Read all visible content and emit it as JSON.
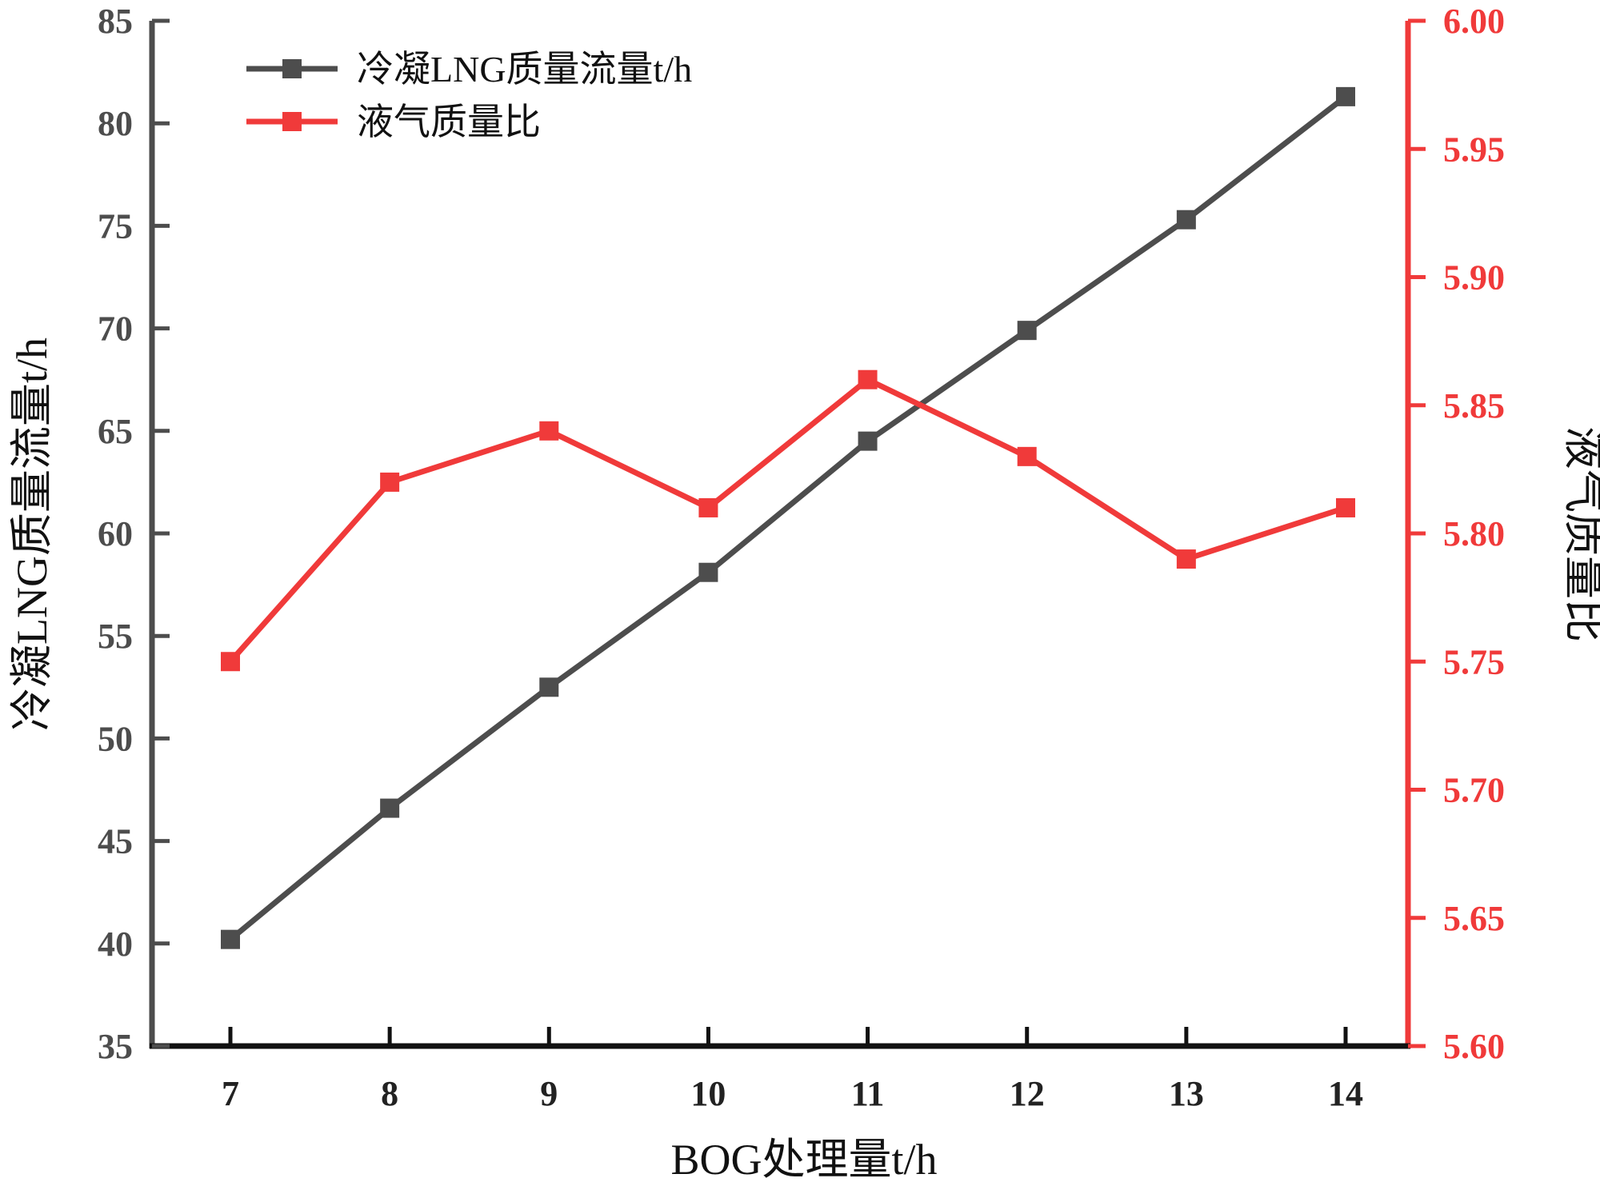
{
  "chart_data": {
    "type": "line",
    "x": [
      7,
      8,
      9,
      10,
      11,
      12,
      13,
      14
    ],
    "xlabel": "BOG处理量t/h",
    "ylabel_left": "冷凝LNG质量流量t/h",
    "ylabel_right": "液气质量比",
    "ylim_left": [
      35,
      85
    ],
    "yticks_left": [
      "35",
      "40",
      "45",
      "50",
      "55",
      "60",
      "65",
      "70",
      "75",
      "80",
      "85"
    ],
    "ylim_right": [
      5.6,
      6.0
    ],
    "yticks_right": [
      "5.60",
      "5.65",
      "5.70",
      "5.75",
      "5.80",
      "5.85",
      "5.90",
      "5.95",
      "6.00"
    ],
    "xticks": [
      "7",
      "8",
      "9",
      "10",
      "11",
      "12",
      "13",
      "14"
    ],
    "series": [
      {
        "name": "冷凝LNG质量流量t/h",
        "axis": "left",
        "color": "#4d4d4d",
        "values": [
          40.2,
          46.6,
          52.5,
          58.1,
          64.5,
          69.9,
          75.3,
          81.3
        ]
      },
      {
        "name": "液气质量比",
        "axis": "right",
        "color": "#f03a3a",
        "values": [
          5.75,
          5.82,
          5.84,
          5.81,
          5.86,
          5.83,
          5.79,
          5.81
        ]
      }
    ],
    "legend": "top-left",
    "grid": false
  }
}
